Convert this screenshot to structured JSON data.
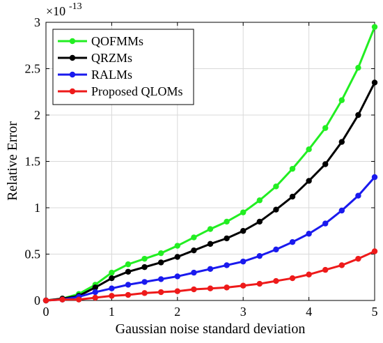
{
  "chart_data": {
    "type": "line",
    "title": "",
    "xlabel": "Gaussian noise standard deviation",
    "ylabel": "Relative Error",
    "xlim": [
      0,
      5
    ],
    "ylim": [
      0,
      3
    ],
    "y_exponent_label": "×10",
    "y_exponent_value": "-13",
    "x_ticks": [
      0,
      1,
      2,
      3,
      4,
      5
    ],
    "x_tick_labels": [
      "0",
      "1",
      "2",
      "3",
      "4",
      "5"
    ],
    "y_ticks": [
      0,
      0.5,
      1,
      1.5,
      2,
      2.5,
      3
    ],
    "y_tick_labels": [
      "0",
      "0.5",
      "1",
      "1.5",
      "2",
      "2.5",
      "3"
    ],
    "grid": true,
    "legend_position": "top-left",
    "x": [
      0,
      0.25,
      0.5,
      0.75,
      1,
      1.25,
      1.5,
      1.75,
      2,
      2.25,
      2.5,
      2.75,
      3,
      3.25,
      3.5,
      3.75,
      4,
      4.25,
      4.5,
      4.75,
      5
    ],
    "series": [
      {
        "name": "QOFMMs",
        "color": "#22ee22",
        "values": [
          0.0,
          0.02,
          0.07,
          0.17,
          0.3,
          0.39,
          0.45,
          0.51,
          0.59,
          0.68,
          0.77,
          0.85,
          0.95,
          1.08,
          1.23,
          1.42,
          1.63,
          1.86,
          2.16,
          2.51,
          2.95
        ]
      },
      {
        "name": "QRZMs",
        "color": "#000000",
        "values": [
          0.0,
          0.02,
          0.05,
          0.14,
          0.24,
          0.31,
          0.36,
          0.41,
          0.47,
          0.54,
          0.61,
          0.67,
          0.75,
          0.85,
          0.98,
          1.12,
          1.29,
          1.47,
          1.71,
          2.0,
          2.35
        ]
      },
      {
        "name": "RALMs",
        "color": "#1a1aee",
        "values": [
          0.0,
          0.01,
          0.04,
          0.09,
          0.13,
          0.17,
          0.2,
          0.23,
          0.26,
          0.3,
          0.34,
          0.38,
          0.42,
          0.48,
          0.55,
          0.63,
          0.72,
          0.83,
          0.97,
          1.13,
          1.33
        ]
      },
      {
        "name": "Proposed QLOMs",
        "color": "#ee1a1a",
        "values": [
          0.0,
          0.01,
          0.01,
          0.03,
          0.05,
          0.06,
          0.08,
          0.09,
          0.1,
          0.12,
          0.13,
          0.14,
          0.16,
          0.18,
          0.21,
          0.24,
          0.28,
          0.33,
          0.38,
          0.45,
          0.53
        ]
      }
    ]
  }
}
